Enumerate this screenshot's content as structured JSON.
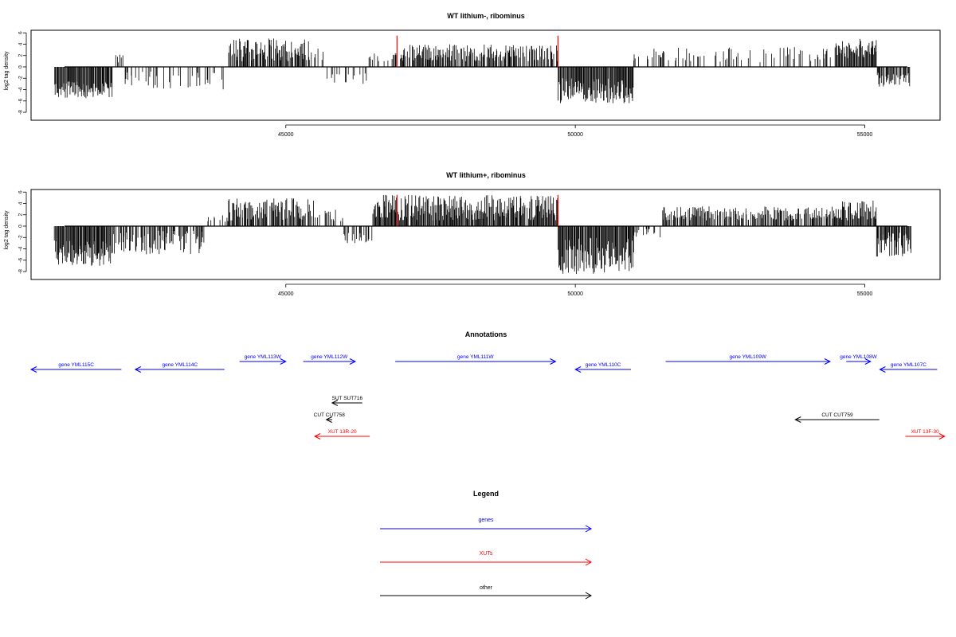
{
  "chart_data": [
    {
      "type": "bar",
      "title": "WT lithium-, ribominus",
      "xlabel": "",
      "ylabel": "log2 tag density",
      "xlim": [
        40600,
        56300
      ],
      "ylim": [
        -9,
        6
      ],
      "xticks": [
        45000,
        50000,
        55000
      ],
      "yticks": [
        6,
        4,
        2,
        0,
        -2,
        -4,
        -6,
        -8
      ],
      "grid": false,
      "color": "#000000",
      "profile_range": [
        41000,
        55800
      ],
      "segments": [
        {
          "from": 41000,
          "to": 42000,
          "sign": -1,
          "mag": [
            2.5,
            5.5
          ],
          "density": 1.0
        },
        {
          "from": 42000,
          "to": 42200,
          "sign": 1,
          "mag": [
            0.8,
            2.2
          ],
          "density": 0.3
        },
        {
          "from": 42200,
          "to": 44000,
          "sign": -1,
          "mag": [
            0.8,
            4.0
          ],
          "density": 0.25
        },
        {
          "from": 44000,
          "to": 45400,
          "sign": 1,
          "mag": [
            1.0,
            5.0
          ],
          "density": 0.8
        },
        {
          "from": 45400,
          "to": 45700,
          "sign": 1,
          "mag": [
            1.0,
            3.5
          ],
          "density": 0.3
        },
        {
          "from": 45700,
          "to": 46400,
          "sign": -1,
          "mag": [
            1.0,
            3.0
          ],
          "density": 0.25
        },
        {
          "from": 46400,
          "to": 47000,
          "sign": 1,
          "mag": [
            1.0,
            2.5
          ],
          "density": 0.3
        },
        {
          "from": 47000,
          "to": 49700,
          "sign": 1,
          "mag": [
            1.0,
            4.0
          ],
          "density": 0.7
        },
        {
          "from": 49700,
          "to": 51000,
          "sign": -1,
          "mag": [
            2.0,
            6.5
          ],
          "density": 1.0
        },
        {
          "from": 51000,
          "to": 54500,
          "sign": 1,
          "mag": [
            0.8,
            3.5
          ],
          "density": 0.25
        },
        {
          "from": 54500,
          "to": 55200,
          "sign": 1,
          "mag": [
            1.5,
            5.0
          ],
          "density": 0.9
        },
        {
          "from": 55200,
          "to": 55800,
          "sign": -1,
          "mag": [
            1.0,
            3.5
          ],
          "density": 0.8
        }
      ],
      "highlights": [
        {
          "x": 46920,
          "value": 5.5,
          "color": "#ff0000"
        },
        {
          "x": 49700,
          "value": 5.5,
          "color": "#ff0000"
        }
      ]
    },
    {
      "type": "bar",
      "title": "WT lithium+, ribominus",
      "xlabel": "",
      "ylabel": "log2 tag density",
      "xlim": [
        40600,
        56300
      ],
      "ylim": [
        -9,
        6
      ],
      "xticks": [
        45000,
        50000,
        55000
      ],
      "yticks": [
        6,
        4,
        2,
        0,
        -2,
        -4,
        -6,
        -8
      ],
      "grid": false,
      "color": "#000000",
      "profile_range": [
        41000,
        55800
      ],
      "segments": [
        {
          "from": 41000,
          "to": 42000,
          "sign": -1,
          "mag": [
            2.5,
            7.0
          ],
          "density": 1.0
        },
        {
          "from": 42000,
          "to": 43600,
          "sign": -1,
          "mag": [
            0.8,
            5.0
          ],
          "density": 0.6
        },
        {
          "from": 43600,
          "to": 44000,
          "sign": 1,
          "mag": [
            0.5,
            2.0
          ],
          "density": 0.3
        },
        {
          "from": 44000,
          "to": 45500,
          "sign": 1,
          "mag": [
            1.0,
            5.0
          ],
          "density": 0.8
        },
        {
          "from": 45500,
          "to": 46000,
          "sign": 1,
          "mag": [
            0.8,
            3.0
          ],
          "density": 0.3
        },
        {
          "from": 46000,
          "to": 46500,
          "sign": -1,
          "mag": [
            1.0,
            3.0
          ],
          "density": 0.5
        },
        {
          "from": 46500,
          "to": 49700,
          "sign": 1,
          "mag": [
            1.0,
            5.5
          ],
          "density": 0.95
        },
        {
          "from": 49700,
          "to": 51000,
          "sign": -1,
          "mag": [
            2.0,
            8.5
          ],
          "density": 1.0
        },
        {
          "from": 51000,
          "to": 51500,
          "sign": -1,
          "mag": [
            0.5,
            2.0
          ],
          "density": 0.4
        },
        {
          "from": 51500,
          "to": 54500,
          "sign": 1,
          "mag": [
            1.0,
            3.5
          ],
          "density": 0.7
        },
        {
          "from": 54500,
          "to": 55200,
          "sign": 1,
          "mag": [
            1.0,
            4.5
          ],
          "density": 0.9
        },
        {
          "from": 55200,
          "to": 55800,
          "sign": -1,
          "mag": [
            1.0,
            5.5
          ],
          "density": 0.9
        }
      ],
      "highlights": [
        {
          "x": 46920,
          "value": 5.5,
          "color": "#ff0000"
        },
        {
          "x": 49700,
          "value": 5.5,
          "color": "#ff0000"
        }
      ]
    },
    {
      "type": "annotation-track",
      "title": "Annotations",
      "xlim": [
        40600,
        56300
      ],
      "features": [
        {
          "label": "gene YML115C",
          "from": 40600,
          "to": 42160,
          "dir": "left",
          "kind": "gene",
          "row": 1
        },
        {
          "label": "gene YML114C",
          "from": 42400,
          "to": 43940,
          "dir": "left",
          "kind": "gene",
          "row": 1
        },
        {
          "label": "gene YML113W",
          "from": 44200,
          "to": 45000,
          "dir": "right",
          "kind": "gene",
          "row": 0
        },
        {
          "label": "gene YML112W",
          "from": 45300,
          "to": 46200,
          "dir": "right",
          "kind": "gene",
          "row": 0
        },
        {
          "label": "gene YML111W",
          "from": 46890,
          "to": 49660,
          "dir": "right",
          "kind": "gene",
          "row": 0
        },
        {
          "label": "gene YML110C",
          "from": 50000,
          "to": 50960,
          "dir": "left",
          "kind": "gene",
          "row": 1
        },
        {
          "label": "gene YML109W",
          "from": 51560,
          "to": 54400,
          "dir": "right",
          "kind": "gene",
          "row": 0
        },
        {
          "label": "gene YML108W",
          "from": 54680,
          "to": 55100,
          "dir": "right",
          "kind": "gene",
          "row": 0
        },
        {
          "label": "gene YML107C",
          "from": 55260,
          "to": 56250,
          "dir": "left",
          "kind": "gene",
          "row": 1
        },
        {
          "label": "SUT SUT716",
          "from": 45800,
          "to": 46320,
          "dir": "left",
          "kind": "other",
          "row": 2
        },
        {
          "label": "CUT CUT758",
          "from": 45700,
          "to": 45800,
          "dir": "left",
          "kind": "other",
          "row": 3
        },
        {
          "label": "XUT 13R-20",
          "from": 45500,
          "to": 46450,
          "dir": "left",
          "kind": "xut",
          "row": 4
        },
        {
          "label": "CUT CUT759",
          "from": 53800,
          "to": 55250,
          "dir": "left",
          "kind": "other",
          "row": 3
        },
        {
          "label": "XUT 13F-30",
          "from": 55700,
          "to": 56380,
          "dir": "right",
          "kind": "xut",
          "row": 4
        }
      ]
    },
    {
      "type": "legend",
      "title": "Legend",
      "items": [
        {
          "label": "genes",
          "color": "#0000ff"
        },
        {
          "label": "XUTs",
          "color": "#ff0000"
        },
        {
          "label": "other",
          "color": "#000000"
        }
      ]
    }
  ],
  "colors": {
    "gene": "#0000ff",
    "xut": "#ff0000",
    "other": "#000000",
    "axis": "#000000"
  }
}
